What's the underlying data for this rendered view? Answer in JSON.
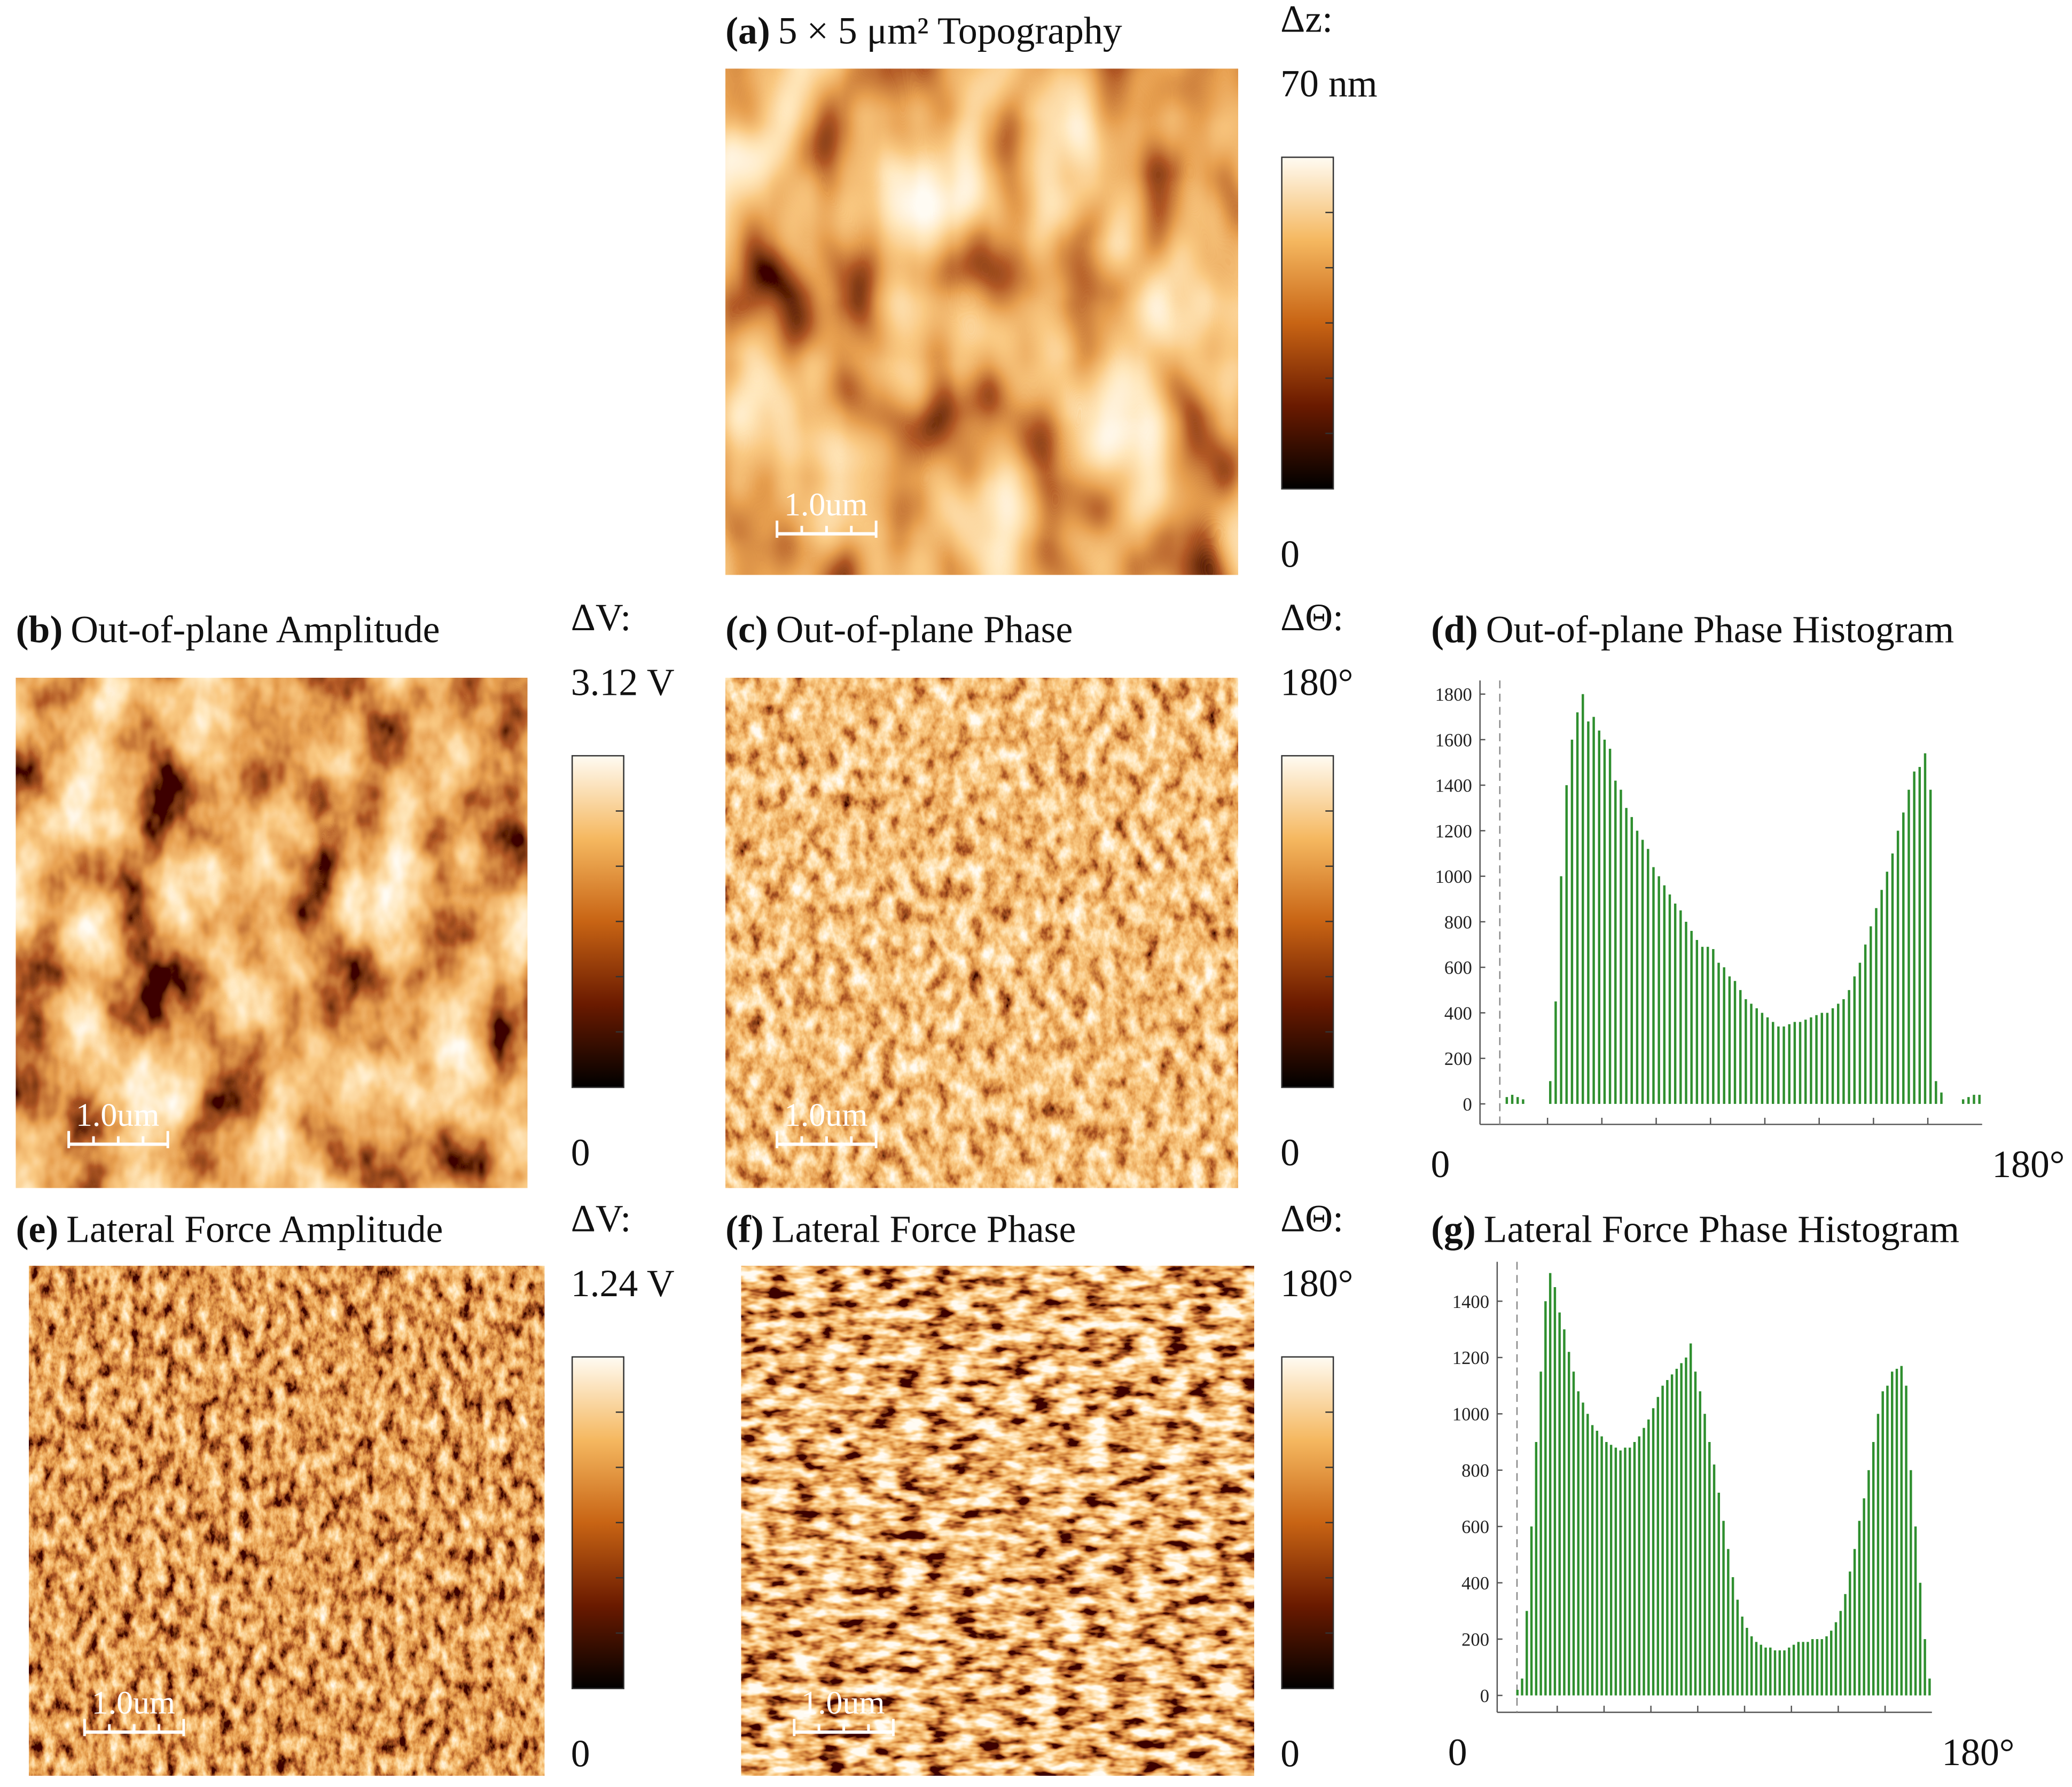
{
  "panels": [
    {
      "label": "(a)",
      "title": "5 × 5 μm² Topography",
      "scale_name": "Δz:",
      "scale_max": "70 nm",
      "scale_min": "0",
      "scale_bar": "1.0um"
    },
    {
      "label": "(b)",
      "title": "Out-of-plane Amplitude",
      "scale_name": "ΔV:",
      "scale_max": "3.12 V",
      "scale_min": "0",
      "scale_bar": "1.0um"
    },
    {
      "label": "(c)",
      "title": "Out-of-plane Phase",
      "scale_name": "ΔΘ:",
      "scale_max": "180°",
      "scale_min": "0",
      "scale_bar": "1.0um"
    },
    {
      "label": "(e)",
      "title": "Lateral Force Amplitude",
      "scale_name": "ΔV:",
      "scale_max": "1.24 V",
      "scale_min": "0",
      "scale_bar": "1.0um"
    },
    {
      "label": "(f)",
      "title": "Lateral Force Phase",
      "scale_name": "ΔΘ:",
      "scale_max": "180°",
      "scale_min": "0",
      "scale_bar": "1.0um"
    }
  ],
  "chart_data": [
    {
      "type": "histogram",
      "label": "(d)",
      "title": "Out-of-plane Phase Histogram",
      "bins": [
        0,
        2,
        4,
        6,
        8,
        10,
        12,
        14,
        16,
        18,
        20,
        22,
        24,
        26,
        28,
        30,
        32,
        34,
        36,
        38,
        40,
        42,
        44,
        46,
        48,
        50,
        52,
        54,
        56,
        58,
        60,
        62,
        64,
        66,
        68,
        70,
        72,
        74,
        76,
        78,
        80,
        82,
        84,
        86,
        88,
        90,
        92,
        94,
        96,
        98,
        100,
        102,
        104,
        106,
        108,
        110,
        112,
        114,
        116,
        118,
        120,
        122,
        124,
        126,
        128,
        130,
        132,
        134,
        136,
        138,
        140,
        142,
        144,
        146,
        148,
        150,
        152,
        154,
        156,
        158,
        160,
        162,
        164,
        166,
        168,
        170,
        172,
        174,
        176,
        178,
        180
      ],
      "values": [
        0,
        0,
        30,
        40,
        30,
        20,
        0,
        0,
        0,
        0,
        100,
        450,
        1000,
        1400,
        1600,
        1720,
        1800,
        1680,
        1700,
        1640,
        1600,
        1560,
        1420,
        1380,
        1300,
        1260,
        1200,
        1160,
        1120,
        1040,
        1000,
        960,
        920,
        880,
        850,
        800,
        760,
        720,
        690,
        690,
        680,
        620,
        600,
        560,
        540,
        500,
        460,
        440,
        420,
        400,
        380,
        360,
        340,
        340,
        350,
        360,
        360,
        370,
        380,
        390,
        400,
        400,
        420,
        440,
        460,
        500,
        560,
        620,
        700,
        780,
        860,
        940,
        1020,
        1100,
        1200,
        1280,
        1380,
        1460,
        1480,
        1540,
        1380,
        100,
        50,
        0,
        0,
        0,
        20,
        30,
        40,
        40
      ],
      "color": "#2f8f2f",
      "xlim": [
        0,
        180
      ],
      "xticks": [
        0,
        {
          "value": 180,
          "label": "180°"
        }
      ],
      "xminor": [
        20,
        40,
        60,
        80,
        100,
        120,
        140,
        160
      ],
      "ylim": [
        -90,
        1860
      ],
      "yticks": [
        0,
        200,
        400,
        600,
        800,
        1000,
        1200,
        1400,
        1600,
        1800
      ]
    },
    {
      "type": "histogram",
      "label": "(g)",
      "title": "Lateral Force Phase Histogram",
      "bins": [
        0,
        2,
        4,
        6,
        8,
        10,
        12,
        14,
        16,
        18,
        20,
        22,
        24,
        26,
        28,
        30,
        32,
        34,
        36,
        38,
        40,
        42,
        44,
        46,
        48,
        50,
        52,
        54,
        56,
        58,
        60,
        62,
        64,
        66,
        68,
        70,
        72,
        74,
        76,
        78,
        80,
        82,
        84,
        86,
        88,
        90,
        92,
        94,
        96,
        98,
        100,
        102,
        104,
        106,
        108,
        110,
        112,
        114,
        116,
        118,
        120,
        122,
        124,
        126,
        128,
        130,
        132,
        134,
        136,
        138,
        140,
        142,
        144,
        146,
        148,
        150,
        152,
        154,
        156,
        158,
        160,
        162,
        164,
        166,
        168,
        170,
        172,
        174,
        176,
        178,
        180
      ],
      "values": [
        0,
        20,
        60,
        300,
        600,
        900,
        1150,
        1400,
        1500,
        1450,
        1360,
        1300,
        1220,
        1150,
        1080,
        1040,
        1000,
        960,
        940,
        920,
        900,
        890,
        880,
        870,
        880,
        880,
        900,
        920,
        950,
        980,
        1020,
        1060,
        1100,
        1120,
        1140,
        1160,
        1180,
        1200,
        1250,
        1150,
        1080,
        1000,
        900,
        820,
        720,
        620,
        520,
        420,
        340,
        280,
        240,
        210,
        190,
        180,
        170,
        170,
        160,
        160,
        160,
        170,
        180,
        190,
        190,
        190,
        200,
        200,
        200,
        210,
        230,
        260,
        300,
        360,
        440,
        520,
        620,
        700,
        800,
        900,
        1000,
        1080,
        1100,
        1150,
        1160,
        1170,
        1100,
        800,
        600,
        400,
        200,
        60
      ],
      "color": "#2f8f2f",
      "xlim": [
        0,
        180
      ],
      "xticks": [
        0,
        {
          "value": 180,
          "label": "180°"
        }
      ],
      "xminor": [
        20,
        40,
        60,
        80,
        100,
        120,
        140,
        160
      ],
      "ylim": [
        -60,
        1540
      ],
      "yticks": [
        0,
        200,
        400,
        600,
        800,
        1000,
        1200,
        1400
      ]
    }
  ]
}
